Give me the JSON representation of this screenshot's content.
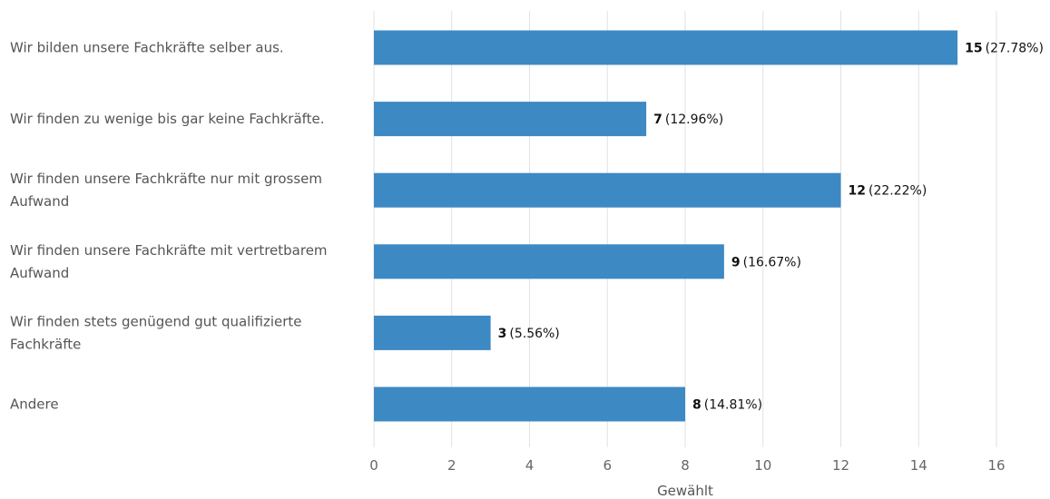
{
  "chart_data": {
    "type": "bar",
    "orientation": "horizontal",
    "categories": [
      "Wir bilden unsere Fachkräfte selber aus.",
      "Wir finden zu wenige bis gar keine Fachkräfte.",
      "Wir finden unsere Fachkräfte nur mit grossem Aufwand",
      "Wir finden unsere Fachkräfte mit vertretbarem Aufwand",
      "Wir finden stets genügend gut qualifizierte Fachkräfte",
      "Andere"
    ],
    "category_lines": [
      [
        "Wir bilden unsere Fachkräfte selber aus."
      ],
      [
        "Wir finden zu wenige bis gar keine Fachkräfte."
      ],
      [
        "Wir finden unsere Fachkräfte nur mit grossem",
        "Aufwand"
      ],
      [
        "Wir finden unsere Fachkräfte mit vertretbarem",
        "Aufwand"
      ],
      [
        "Wir finden stets genügend gut qualifizierte",
        "Fachkräfte"
      ],
      [
        "Andere"
      ]
    ],
    "values": [
      15,
      7,
      12,
      9,
      3,
      8
    ],
    "value_labels": [
      "15",
      "7",
      "12",
      "9",
      "3",
      "8"
    ],
    "percent_labels": [
      "(27.78%)",
      "(12.96%)",
      "(22.22%)",
      "(16.67%)",
      "(5.56%)",
      "(14.81%)"
    ],
    "xlabel": "Gewählt",
    "xlim": [
      0,
      16
    ],
    "xticks": [
      0,
      2,
      4,
      6,
      8,
      10,
      12,
      14,
      16
    ],
    "xtick_labels": [
      "0",
      "2",
      "4",
      "6",
      "8",
      "10",
      "12",
      "14",
      "16"
    ],
    "grid": "vertical",
    "bar_color": "#3d89c4"
  }
}
